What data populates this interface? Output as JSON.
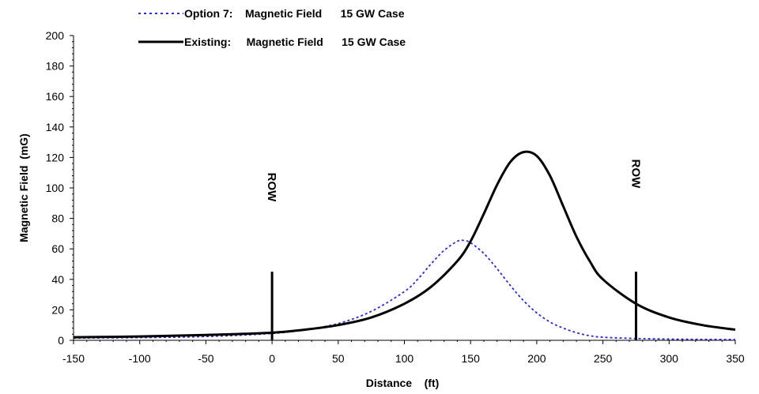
{
  "chart_data": {
    "type": "line",
    "title": "",
    "xlabel": "Distance    (ft)",
    "ylabel": "Magnetic Field  (mG)",
    "xlim": [
      -150,
      350
    ],
    "ylim": [
      0,
      200
    ],
    "x_ticks": [
      -150,
      -100,
      -50,
      0,
      50,
      100,
      150,
      200,
      250,
      300,
      350
    ],
    "y_ticks": [
      0,
      20,
      40,
      60,
      80,
      100,
      120,
      140,
      160,
      180,
      200
    ],
    "grid": false,
    "legend_position": "top",
    "series": [
      {
        "name": "Option 7:    Magnetic Field      15 GW Case",
        "style": "dotted",
        "color": "#2e2ebf",
        "x": [
          -150,
          -100,
          -50,
          0,
          25,
          50,
          75,
          100,
          110,
          120,
          130,
          140,
          145,
          150,
          160,
          170,
          180,
          190,
          200,
          210,
          220,
          230,
          240,
          250,
          275,
          300,
          325,
          350
        ],
        "y": [
          1.5,
          1.8,
          2.5,
          4.5,
          7,
          11,
          19,
          32,
          40,
          50,
          59,
          65,
          65.5,
          64,
          57,
          47,
          36,
          26,
          18,
          12,
          8,
          5,
          3,
          2,
          1.2,
          0.8,
          0.6,
          0.5
        ]
      },
      {
        "name": "Existing:     Magnetic Field      15 GW Case",
        "style": "solid",
        "color": "#000000",
        "x": [
          -150,
          -100,
          -50,
          0,
          25,
          50,
          75,
          100,
          120,
          140,
          150,
          160,
          170,
          180,
          190,
          200,
          210,
          220,
          230,
          240,
          250,
          275,
          300,
          325,
          350
        ],
        "y": [
          2,
          2.5,
          3.5,
          5,
          7,
          10,
          15,
          24,
          35,
          52,
          65,
          83,
          102,
          117,
          123.5,
          121,
          108,
          88,
          68,
          52,
          40,
          24,
          15,
          10,
          7
        ]
      }
    ],
    "annotations": [
      {
        "text": "ROW",
        "x": 0,
        "marker_top": 45
      },
      {
        "text": "ROW",
        "x": 275,
        "marker_top": 45
      }
    ]
  }
}
